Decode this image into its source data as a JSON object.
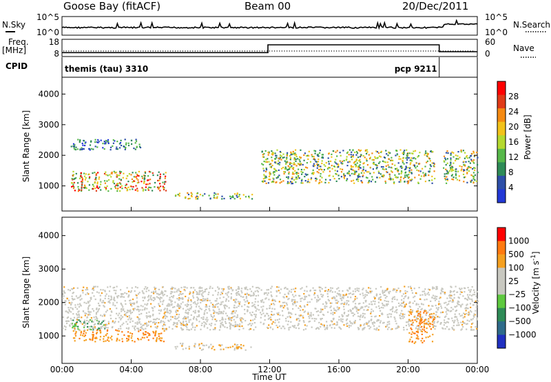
{
  "header": {
    "station": "Goose Bay (fitACF)",
    "beam": "Beam 00",
    "date": "20/Dec/2011"
  },
  "noise_panel": {
    "left_label": "N.Sky",
    "right_label": "N.Search",
    "left_ticks": [
      "10^5",
      "10^0"
    ],
    "right_ticks": [
      "10^5",
      "10^0"
    ]
  },
  "freq_panel": {
    "left_label_1": "Freq.",
    "left_label_2": "[MHz]",
    "right_label": "Nave",
    "left_ticks": [
      "18",
      "8"
    ],
    "right_ticks": [
      "60",
      "0"
    ],
    "freq_steps": [
      {
        "t": 0,
        "v": 10.3
      },
      {
        "t": 11.9,
        "v": 10.3
      },
      {
        "t": 11.9,
        "v": 14.8
      },
      {
        "t": 21.8,
        "v": 14.8
      },
      {
        "t": 21.8,
        "v": 10.8
      },
      {
        "t": 24,
        "v": 10.8
      }
    ]
  },
  "cpid_panel": {
    "label": "CPID",
    "programs": [
      {
        "name": "themis (tau) 3310",
        "start": 0
      },
      {
        "name": "pcp 9211",
        "start": 21.8
      }
    ]
  },
  "colors": {
    "power": [
      "#2238d6",
      "#2d4fa8",
      "#2e8b57",
      "#57b84a",
      "#b5d92f",
      "#f2c21a",
      "#f58a12",
      "#e03a17",
      "#ff0000"
    ],
    "velocity": [
      "#2030c0",
      "#2e6b8a",
      "#2e8b57",
      "#5ec93f",
      "#c8c8c0",
      "#c8c8c0",
      "#f5a020",
      "#ff7a10",
      "#ff0000"
    ]
  },
  "chart_data": [
    {
      "type": "heatmap",
      "title": "Power",
      "xlabel": "",
      "ylabel": "Slant Range [km]",
      "xlim": [
        0,
        24
      ],
      "ylim": [
        180,
        4550
      ],
      "yticks": [
        "1000",
        "2000",
        "3000",
        "4000"
      ],
      "xticks": [
        "00:00",
        "04:00",
        "08:00",
        "12:00",
        "16:00",
        "20:00",
        "00:00"
      ],
      "colorbar_label": "Power [dB]",
      "colorbar_ticks": [
        "4",
        "8",
        "12",
        "16",
        "20",
        "24",
        "28"
      ],
      "regions": [
        {
          "t0": 0.5,
          "t1": 6.0,
          "r0": 850,
          "r1": 1500,
          "level": "high"
        },
        {
          "t0": 0.5,
          "t1": 4.5,
          "r0": 2200,
          "r1": 2550,
          "level": "low"
        },
        {
          "t0": 6.5,
          "t1": 11.0,
          "r0": 600,
          "r1": 800,
          "level": "mid"
        },
        {
          "t0": 11.5,
          "t1": 21.5,
          "r0": 1100,
          "r1": 2200,
          "level": "mid"
        },
        {
          "t0": 22.0,
          "t1": 24.0,
          "r0": 1100,
          "r1": 2200,
          "level": "mid"
        }
      ]
    },
    {
      "type": "heatmap",
      "title": "Velocity",
      "xlabel": "Time UT",
      "ylabel": "Slant Range [km]",
      "xlim": [
        0,
        24
      ],
      "ylim": [
        180,
        4550
      ],
      "yticks": [
        "1000",
        "2000",
        "3000",
        "4000"
      ],
      "xticks": [
        "00:00",
        "04:00",
        "08:00",
        "12:00",
        "16:00",
        "20:00",
        "00:00"
      ],
      "colorbar_label": "Velocity [m s^-1]",
      "colorbar_ticks": [
        "1000",
        "500",
        "100",
        "25",
        "−25",
        "−100",
        "−500",
        "−1000"
      ],
      "regions": [
        {
          "t0": 0.5,
          "t1": 2.5,
          "r0": 1200,
          "r1": 1500,
          "level": "green"
        },
        {
          "t0": 0.5,
          "t1": 6.0,
          "r0": 850,
          "r1": 1200,
          "level": "orange"
        },
        {
          "t0": 0.0,
          "t1": 24.0,
          "r0": 1200,
          "r1": 2500,
          "level": "grey"
        },
        {
          "t0": 6.5,
          "t1": 11.0,
          "r0": 600,
          "r1": 800,
          "level": "ochre"
        },
        {
          "t0": 20.0,
          "t1": 21.5,
          "r0": 800,
          "r1": 1800,
          "level": "orange"
        }
      ]
    }
  ],
  "time_axis": {
    "xlabel": "Time UT"
  }
}
